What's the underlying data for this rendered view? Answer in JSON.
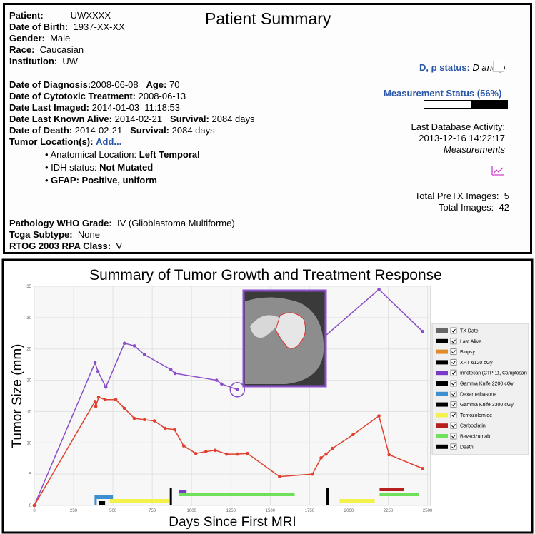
{
  "summary": {
    "title": "Patient Summary",
    "patient": {
      "label": "Patient:",
      "value": "UWXXXX"
    },
    "dob": {
      "label": "Date of Birth:",
      "value": "1937-XX-XX"
    },
    "gender": {
      "label": "Gender:",
      "value": "Male"
    },
    "race": {
      "label": "Race:",
      "value": "Caucasian"
    },
    "institution": {
      "label": "Institution:",
      "value": "UW"
    },
    "diagnosis": {
      "label": "Date of Diagnosis:",
      "value": "2008-06-08",
      "age_label": "Age:",
      "age": 70
    },
    "cytotoxic": {
      "label": "Date of Cytotoxic Treatment:",
      "value": "2008-06-13"
    },
    "last_imaged": {
      "label": "Date Last Imaged:",
      "value": "2014-01-03  11:18:53"
    },
    "last_alive": {
      "label": "Date Last Known Alive:",
      "value": "2014-02-21",
      "survival_label": "Survival:",
      "survival": "2084 days"
    },
    "death": {
      "label": "Date of Death:",
      "value": "2014-02-21",
      "survival_label": "Survival:",
      "survival": "2084 days"
    },
    "tumor_location": {
      "label": "Tumor Location(s):",
      "link": "Add..."
    },
    "bullets": [
      {
        "label": "Anatomical Location:",
        "value": "Left Temporal"
      },
      {
        "label": "IDH status:",
        "value": "Not Mutated"
      },
      {
        "label": "GFAP:",
        "value": "Positive, uniform"
      }
    ],
    "grade": {
      "label": "Pathology WHO Grade:",
      "value": "IV (Glioblastoma Multiforme)"
    },
    "tcga": {
      "label": "Tcga Subtype:",
      "value": "None"
    },
    "rtog": {
      "label": "RTOG 2003 RPA Class:",
      "value": "V"
    },
    "d_rho": {
      "label": "D, ρ status:",
      "value": "D and ρ"
    },
    "measurement": {
      "label": "Measurement Status (56%)",
      "progress": 56
    },
    "activity": {
      "label": "Last Database Activity:",
      "value": "2013-12-16 14:22:17",
      "type": "Measurements"
    },
    "pretx_images": {
      "label": "Total PreTX Images:",
      "value": 5
    },
    "total_images": {
      "label": "Total Images:",
      "value": 42
    }
  },
  "chart_data": {
    "type": "line",
    "title": "Summary of Tumor Growth and Treatment Response",
    "y_label": "Tumor Size (mm)",
    "x_label": "Days Since First MRI",
    "xlim": [
      0,
      2520
    ],
    "ylim": [
      0,
      35
    ],
    "xticks": [
      0,
      250,
      500,
      750,
      1000,
      1250,
      1500,
      1750,
      2000,
      2250,
      2500
    ],
    "yticks": [
      0,
      5,
      10,
      15,
      20,
      25,
      30,
      35
    ],
    "grid": true,
    "series": [
      {
        "name": "Purple",
        "color": "#8a4fc8",
        "x": [
          0,
          386,
          405,
          455,
          573,
          636,
          700,
          868,
          895,
          1159,
          1191,
          1291,
          1850,
          1832,
          2191,
          2468
        ],
        "values": [
          0,
          22.8,
          21.4,
          18.9,
          25.9,
          25.5,
          24.1,
          21.7,
          21.1,
          20.0,
          19.4,
          18.5,
          null,
          26.7,
          34.5,
          27.8
        ]
      },
      {
        "name": "Red",
        "color": "#e0402e",
        "x": [
          0,
          386,
          391,
          409,
          450,
          518,
          573,
          636,
          700,
          764,
          832,
          891,
          950,
          1027,
          1091,
          1150,
          1223,
          1291,
          1355,
          1559,
          1768,
          1823,
          1855,
          1895,
          2027,
          2191,
          2255,
          2468
        ],
        "values": [
          0,
          16.6,
          15.8,
          17.3,
          16.9,
          16.9,
          15.5,
          13.9,
          13.7,
          13.5,
          12.3,
          12.1,
          9.5,
          8.3,
          8.6,
          8.8,
          8.2,
          8.2,
          8.3,
          4.6,
          5.0,
          7.6,
          8.2,
          9.1,
          11.3,
          14.3,
          8.1,
          5.9
        ]
      }
    ],
    "treatments": [
      {
        "name": "TX Date",
        "color": "#666666",
        "periods": []
      },
      {
        "name": "Last Alive",
        "color": "#000000",
        "periods": []
      },
      {
        "name": "Biopsy",
        "color": "#e08a2a",
        "periods": []
      },
      {
        "name": "XRT 6120 cGy",
        "color": "#000000",
        "periods": [
          [
            868,
            868
          ]
        ]
      },
      {
        "name": "Irinotecan (CTP-11, Camptosar)",
        "color": "#7a3cc8",
        "periods": [
          [
            918,
            968
          ]
        ]
      },
      {
        "name": "Gamma Knife 2200 cGy",
        "color": "#000000",
        "periods": [
          [
            1864,
            1864
          ]
        ]
      },
      {
        "name": "Dexamethasone",
        "color": "#3d8fd0",
        "periods": [
          [
            390,
            390
          ],
          [
            390,
            500
          ]
        ]
      },
      {
        "name": "Gamma Knife 3300 cGy",
        "color": "#000000",
        "periods": [
          [
            410,
            450
          ]
        ]
      },
      {
        "name": "Temozolomide",
        "color": "#f2f24a",
        "periods": [
          [
            480,
            855
          ],
          [
            1941,
            2164
          ]
        ]
      },
      {
        "name": "Carboplatin",
        "color": "#b82020",
        "periods": [
          [
            2195,
            2350
          ]
        ]
      },
      {
        "name": "Bevacizumab",
        "color": "#6ee05a",
        "periods": [
          [
            918,
            1655
          ],
          [
            2195,
            2445
          ]
        ]
      },
      {
        "name": "Death",
        "color": "#000000",
        "periods": []
      }
    ]
  }
}
